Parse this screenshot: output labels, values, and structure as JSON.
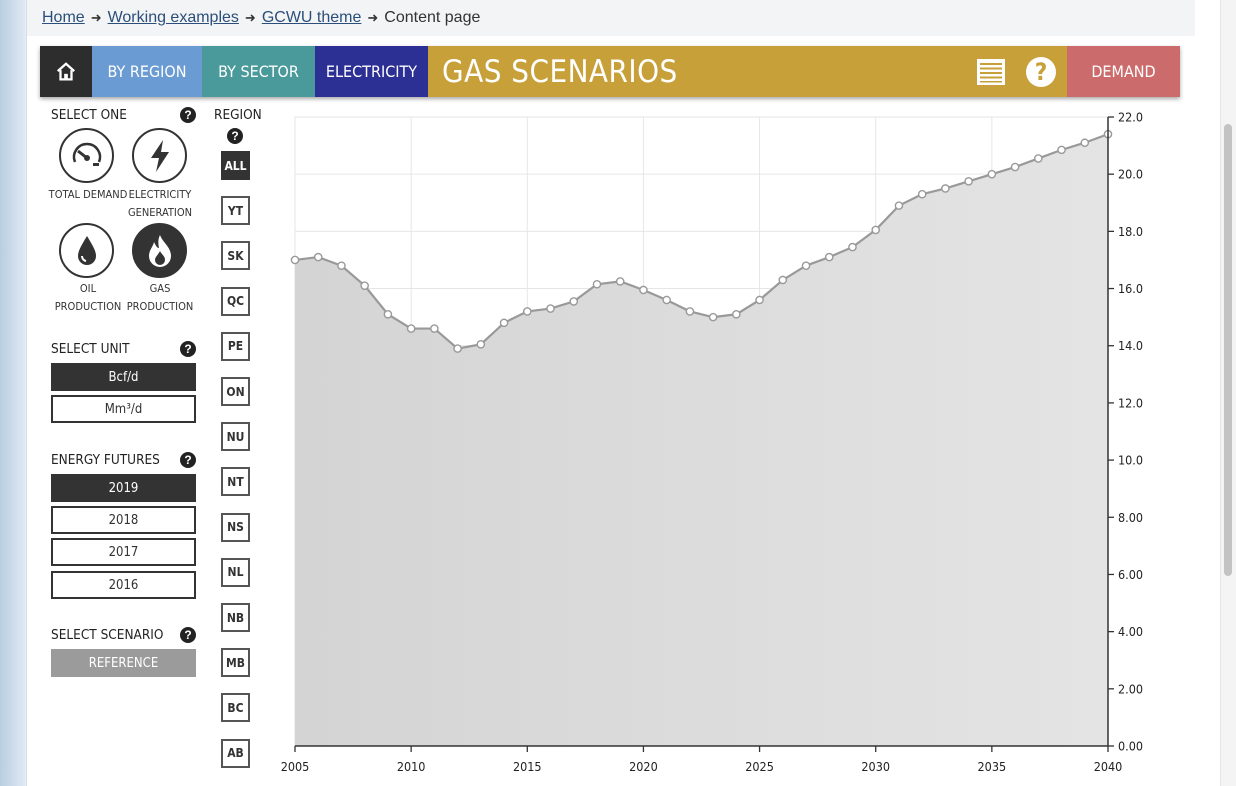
{
  "breadcrumb": {
    "items": [
      "Home",
      "Working examples",
      "GCWU theme"
    ],
    "current": "Content page"
  },
  "nav": {
    "by_region": "BY REGION",
    "by_sector": "BY SECTOR",
    "electricity": "ELECTRICITY",
    "title": "GAS SCENARIOS",
    "demand": "DEMAND",
    "help": "?",
    "colors": {
      "home": "#2d2d2d",
      "region": "#6a9bd2",
      "sector": "#4a9a9b",
      "electricity": "#2c2f94",
      "gas": "#c7a03a",
      "demand": "#cc6b6b"
    }
  },
  "sidebar": {
    "select_one": "SELECT ONE",
    "sources": [
      {
        "label_1": "TOTAL DEMAND",
        "label_2": "",
        "icon": "gauge-icon"
      },
      {
        "label_1": "ELECTRICITY",
        "label_2": "GENERATION",
        "icon": "lightning-icon"
      },
      {
        "label_1": "OIL",
        "label_2": "PRODUCTION",
        "icon": "oil-drop-icon"
      },
      {
        "label_1": "GAS",
        "label_2": "PRODUCTION",
        "icon": "flame-icon",
        "selected": true
      }
    ],
    "select_unit": "SELECT UNIT",
    "units": [
      "Bcf/d",
      "Mm³/d"
    ],
    "energy_futures": "ENERGY FUTURES",
    "years": [
      "2019",
      "2018",
      "2017",
      "2016"
    ],
    "select_scenario": "SELECT SCENARIO",
    "scenario": "REFERENCE",
    "help": "?"
  },
  "region": {
    "label": "REGION",
    "help": "?",
    "items": [
      "ALL",
      "YT",
      "SK",
      "QC",
      "PE",
      "ON",
      "NU",
      "NT",
      "NS",
      "NL",
      "NB",
      "MB",
      "BC",
      "AB"
    ]
  },
  "chart_data": {
    "type": "area",
    "x": [
      2005,
      2006,
      2007,
      2008,
      2009,
      2010,
      2011,
      2012,
      2013,
      2014,
      2015,
      2016,
      2017,
      2018,
      2019,
      2020,
      2021,
      2022,
      2023,
      2024,
      2025,
      2026,
      2027,
      2028,
      2029,
      2030,
      2031,
      2032,
      2033,
      2034,
      2035,
      2036,
      2037,
      2038,
      2039,
      2040
    ],
    "series": [
      {
        "values": [
          17.0,
          17.1,
          16.8,
          16.1,
          15.1,
          14.6,
          14.6,
          13.9,
          14.05,
          14.8,
          15.2,
          15.3,
          15.55,
          16.15,
          16.25,
          15.95,
          15.6,
          15.2,
          15.0,
          15.1,
          15.6,
          16.3,
          16.8,
          17.1,
          17.45,
          18.05,
          18.9,
          19.3,
          19.5,
          19.75,
          20.0,
          20.25,
          20.55,
          20.85,
          21.1,
          21.4
        ]
      }
    ],
    "xlim": [
      2005,
      2040
    ],
    "ylim": [
      0,
      22
    ],
    "x_ticks": [
      "2005",
      "2010",
      "2015",
      "2020",
      "2025",
      "2030",
      "2035",
      "2040"
    ],
    "y_ticks": [
      "0.00",
      "2.00",
      "4.00",
      "6.00",
      "8.00",
      "10.0",
      "12.0",
      "14.0",
      "16.0",
      "18.0",
      "20.0",
      "22.0"
    ],
    "y_axis_position": "right",
    "grid": true,
    "colors": {
      "line": "#999999",
      "area_top": "#e4e4e4",
      "area_bottom": "#d4d4d4"
    }
  }
}
